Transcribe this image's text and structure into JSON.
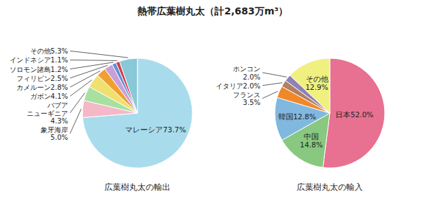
{
  "title": "熱帯広葉樹丸太（計2,683万m³）",
  "chart_data": [
    {
      "type": "pie",
      "title": "広葉樹丸太の輸出",
      "categories": [
        "マレーシア73.7%",
        "象牙海岸\n5.0%",
        "バブア\nニューギニア\n4.3%",
        "ガボン4.1%",
        "カメルーン2.8%",
        "フィリピン2.5%",
        "ソロモン諸島1.2%",
        "インドネシア1.1%",
        "その他5.3%"
      ],
      "values": [
        73.7,
        5.0,
        4.3,
        4.1,
        2.8,
        2.5,
        1.2,
        1.1,
        5.3
      ],
      "colors": [
        "#A8DCEC",
        "#F4B8C8",
        "#A8E0A0",
        "#F0E070",
        "#F0A030",
        "#C8A0D8",
        "#6090D0",
        "#D04050",
        "#88C8D8"
      ]
    },
    {
      "type": "pie",
      "title": "広葉樹丸太の輸入",
      "categories": [
        "日本52.0%",
        "中国\n14.8%",
        "韓国12.8%",
        "フランス\n3.5%",
        "イタリア2.0%",
        "ホンコン\n2.0%",
        "その他\n12.9%"
      ],
      "values": [
        52.0,
        14.8,
        12.8,
        3.5,
        2.0,
        2.0,
        12.9
      ],
      "colors": [
        "#E87090",
        "#88C880",
        "#80B8E0",
        "#F08828",
        "#B08060",
        "#9080B8",
        "#F0F080"
      ]
    }
  ]
}
